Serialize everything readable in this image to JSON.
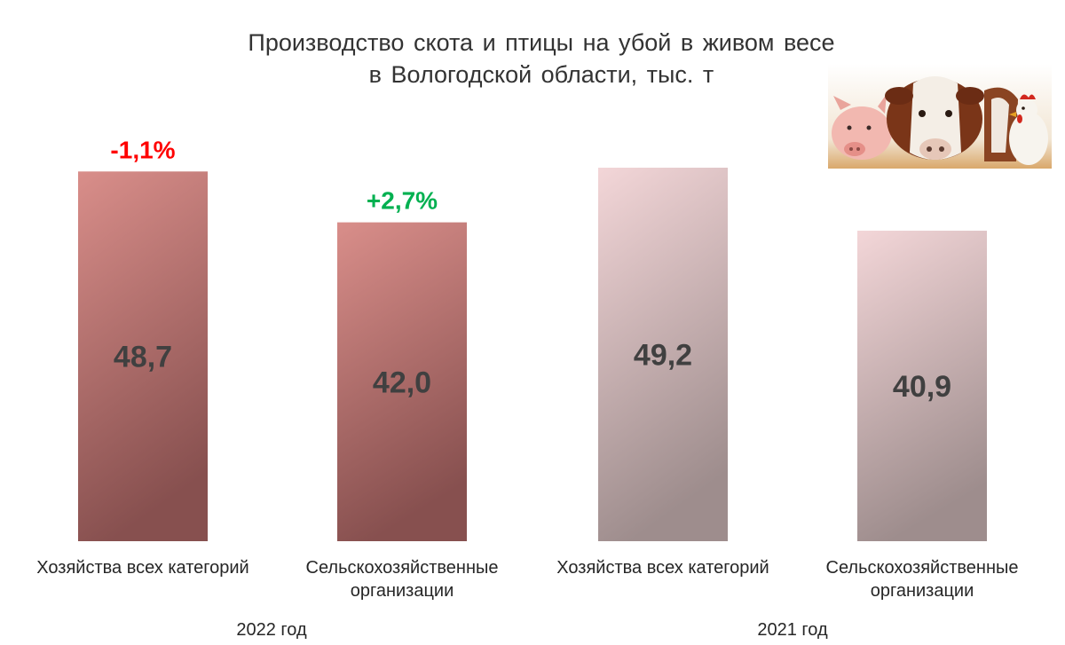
{
  "chart_data": {
    "type": "bar",
    "title": [
      "Производство скота и птицы на убой в живом весе",
      "в Вологодской области, тыс. т"
    ],
    "groups": [
      {
        "name": "2022 год",
        "bars": [
          {
            "category": [
              "Хозяйства всех категорий"
            ],
            "value": 48.7,
            "value_label": "48,7",
            "change": "-1,1%",
            "change_color": "#ff0000"
          },
          {
            "category": [
              "Сельскохозяйственные",
              "организации"
            ],
            "value": 42.0,
            "value_label": "42,0",
            "change": "+2,7%",
            "change_color": "#00b050"
          }
        ]
      },
      {
        "name": "2021 год",
        "bars": [
          {
            "category": [
              "Хозяйства всех категорий"
            ],
            "value": 49.2,
            "value_label": "49,2"
          },
          {
            "category": [
              "Сельскохозяйственные",
              "организации"
            ],
            "value": 40.9,
            "value_label": "40,9"
          }
        ]
      }
    ],
    "ylim": [
      0,
      49.2
    ],
    "grid": false,
    "colors": {
      "2022_top": "#d98e8a",
      "2022_bottom": "#87504f",
      "2021_top": "#f3d6d8",
      "2021_bottom": "#9e8d8d"
    }
  },
  "image": {
    "icon": "farm-animals-photo"
  }
}
